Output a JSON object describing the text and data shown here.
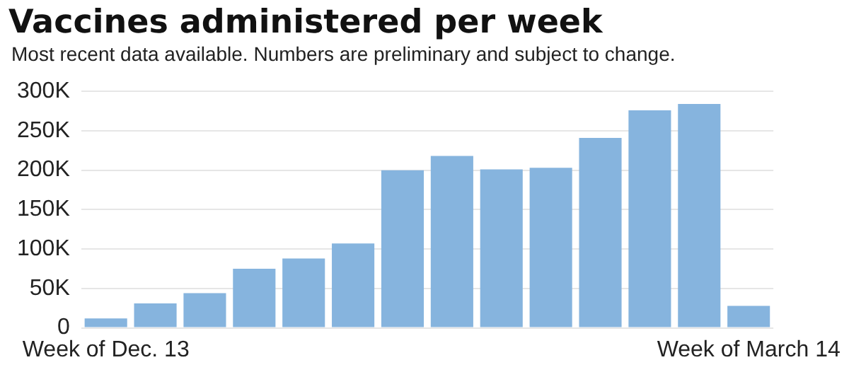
{
  "chart_data": {
    "type": "bar",
    "title": "Vaccines administered per week",
    "subtitle": "Most recent data available. Numbers are preliminary and subject to change.",
    "categories": [
      "Week of Dec. 13",
      null,
      null,
      null,
      null,
      null,
      null,
      null,
      null,
      null,
      null,
      null,
      null,
      "Week of March 14"
    ],
    "values": [
      12000,
      31000,
      44000,
      75000,
      88000,
      107000,
      200000,
      218000,
      201000,
      203000,
      241000,
      276000,
      284000,
      28000
    ],
    "color": "#86b4de",
    "ylim": [
      0,
      300000
    ],
    "yticks": [
      {
        "value": 0,
        "label": "0"
      },
      {
        "value": 50000,
        "label": "50K"
      },
      {
        "value": 100000,
        "label": "100K"
      },
      {
        "value": 150000,
        "label": "150K"
      },
      {
        "value": 200000,
        "label": "200K"
      },
      {
        "value": 250000,
        "label": "250K"
      },
      {
        "value": 300000,
        "label": "300K"
      }
    ],
    "grid": "y"
  }
}
